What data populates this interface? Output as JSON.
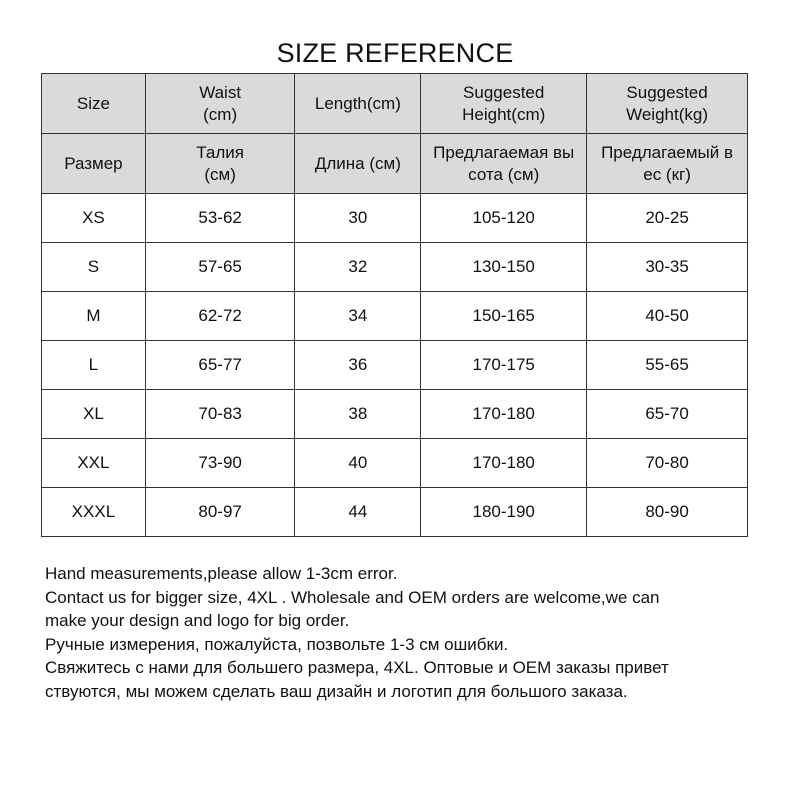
{
  "title": "SIZE REFERENCE",
  "header_en": [
    [
      "Size"
    ],
    [
      "Waist",
      "(cm)"
    ],
    [
      "Length(cm)"
    ],
    [
      "Suggested",
      "Height(cm)"
    ],
    [
      "Suggested",
      "Weight(kg)"
    ]
  ],
  "header_ru": [
    [
      "Размер"
    ],
    [
      "Талия",
      "(см)"
    ],
    [
      "Длина (см)"
    ],
    [
      "Предлагаемая вы",
      "сота (см)"
    ],
    [
      "Предлагаемый в",
      "ес (кг)"
    ]
  ],
  "rows": [
    [
      "XS",
      "53-62",
      "30",
      "105-120",
      "20-25"
    ],
    [
      "S",
      "57-65",
      "32",
      "130-150",
      "30-35"
    ],
    [
      "M",
      "62-72",
      "34",
      "150-165",
      "40-50"
    ],
    [
      "L",
      "65-77",
      "36",
      "170-175",
      "55-65"
    ],
    [
      "XL",
      "70-83",
      "38",
      "170-180",
      "65-70"
    ],
    [
      "XXL",
      "73-90",
      "40",
      "170-180",
      "70-80"
    ],
    [
      "XXXL",
      "80-97",
      "44",
      "180-190",
      "80-90"
    ]
  ],
  "notes": [
    "Hand measurements,please allow 1-3cm error.",
    "Contact us for bigger size, 4XL . Wholesale and OEM orders are welcome,we can",
    "make your design and logo for big order.",
    "Ручные измерения, пожалуйста, позвольте 1-3 см ошибки.",
    "Свяжитесь с нами для большего размера, 4XL. Оптовые и OEM заказы привет",
    "ствуются, мы можем сделать ваш дизайн и логотип для большого заказа."
  ],
  "colors": {
    "header_bg": "#dadada",
    "border": "#333333"
  }
}
